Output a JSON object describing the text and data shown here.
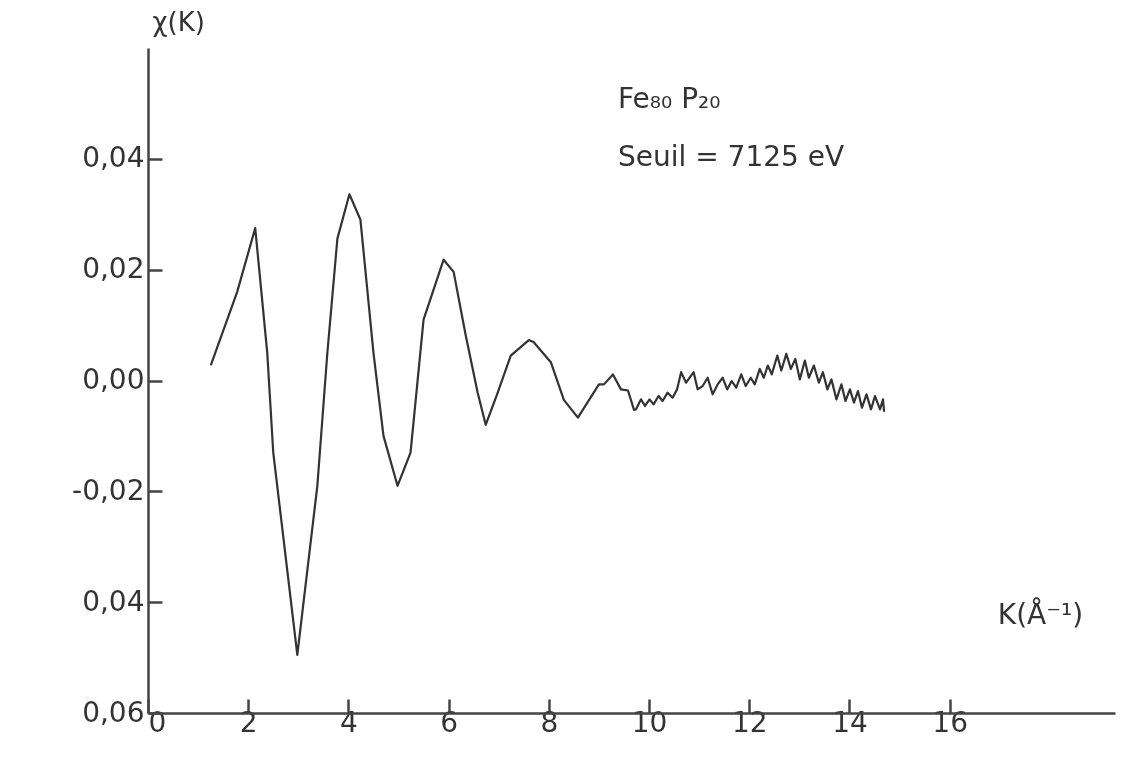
{
  "chart_data": {
    "type": "line",
    "xlabel": "K(Å⁻¹)",
    "ylabel": "χ(K)",
    "annotations": [
      "Fe₈₀ P₂₀",
      "Seuil = 7125 eV"
    ],
    "xlim": [
      0,
      19.3
    ],
    "xticks": [
      0,
      2,
      4,
      6,
      8,
      10,
      12,
      14,
      16
    ],
    "ylim": [
      -0.06,
      0.06
    ],
    "yticks": [
      {
        "value": 0.04,
        "label": "0,04"
      },
      {
        "value": 0.02,
        "label": "0,02"
      },
      {
        "value": 0,
        "label": "0,00"
      },
      {
        "value": -0.02,
        "label": "-0,02"
      },
      {
        "value": -0.04,
        "label": "0,04"
      },
      {
        "value": -0.06,
        "label": "0,06"
      }
    ],
    "grid": false,
    "line_style": "solid",
    "series": [
      {
        "color": "#333333",
        "x": [
          1.26,
          1.78,
          2.14,
          2.38,
          2.5,
          2.98,
          3.38,
          3.58,
          3.78,
          4.02,
          4.24,
          4.5,
          4.7,
          4.98,
          5.24,
          5.5,
          5.9,
          6.1,
          6.34,
          6.58,
          6.74,
          6.98,
          7.24,
          7.6,
          7.7,
          8.04,
          8.3,
          8.58,
          9.0,
          9.1,
          9.28,
          9.44,
          9.58,
          9.7,
          9.74,
          9.84,
          9.92,
          10.01,
          10.09,
          10.19,
          10.27,
          10.37,
          10.47,
          10.56,
          10.64,
          10.74,
          10.81,
          10.89,
          10.97,
          11.07,
          11.17,
          11.27,
          11.37,
          11.47,
          11.56,
          11.65,
          11.74,
          11.84,
          11.93,
          12.03,
          12.11,
          12.21,
          12.29,
          12.37,
          12.45,
          12.56,
          12.64,
          12.74,
          12.83,
          12.92,
          13.01,
          13.11,
          13.19,
          13.29,
          13.39,
          13.47,
          13.56,
          13.64,
          13.74,
          13.84,
          13.92,
          14.01,
          14.09,
          14.17,
          14.25,
          14.34,
          14.43,
          14.51,
          14.61,
          14.67,
          14.69
        ],
        "values": [
          0.0029,
          0.016,
          0.0275,
          0.005,
          -0.013,
          -0.0495,
          -0.019,
          0.005,
          0.0256,
          0.0336,
          0.029,
          0.005,
          -0.01,
          -0.019,
          -0.013,
          0.011,
          0.0218,
          0.0196,
          0.0082,
          -0.0022,
          -0.008,
          -0.0022,
          0.0045,
          0.0073,
          0.0069,
          0.0033,
          -0.0035,
          -0.0067,
          -0.0007,
          -0.0007,
          0.0011,
          -0.0016,
          -0.0018,
          -0.0053,
          -0.0052,
          -0.0034,
          -0.0046,
          -0.0034,
          -0.0043,
          -0.0028,
          -0.0037,
          -0.0022,
          -0.0031,
          -0.0016,
          0.0015,
          -0.0004,
          0.0005,
          0.0015,
          -0.0016,
          -0.001,
          0.0005,
          -0.0025,
          -0.0007,
          0.0005,
          -0.0016,
          -0.0001,
          -0.0013,
          0.0011,
          -0.001,
          0.0005,
          -0.0007,
          0.0021,
          0.0005,
          0.0027,
          0.0011,
          0.0045,
          0.0018,
          0.0048,
          0.0021,
          0.0039,
          0.0002,
          0.0036,
          0.0005,
          0.0027,
          -0.0004,
          0.0015,
          -0.0016,
          0.0002,
          -0.0034,
          -0.0007,
          -0.0037,
          -0.0016,
          -0.004,
          -0.0019,
          -0.0049,
          -0.0025,
          -0.0052,
          -0.0028,
          -0.0052,
          -0.0034,
          -0.0055
        ]
      }
    ]
  }
}
